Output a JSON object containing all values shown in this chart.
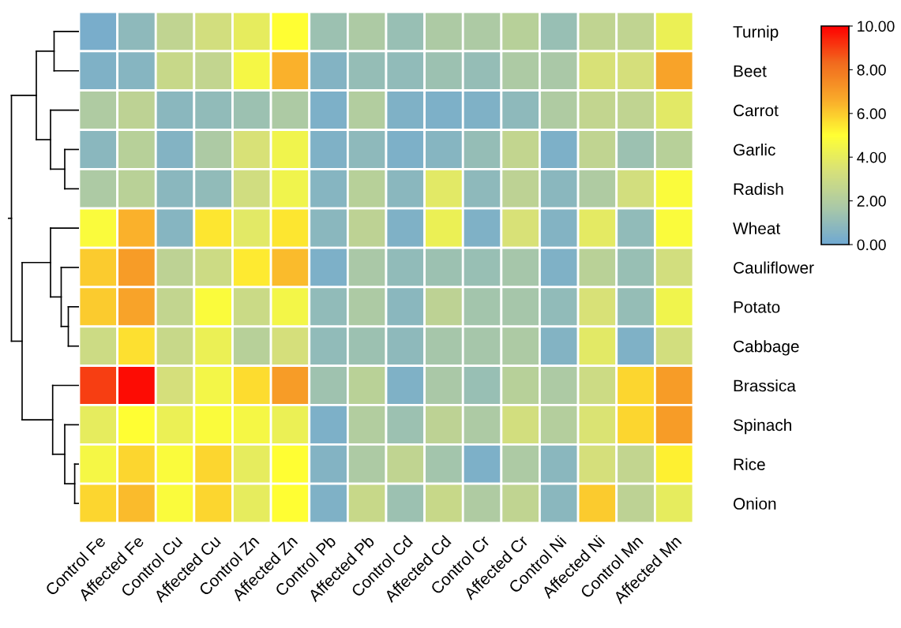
{
  "chart_data": {
    "type": "heatmap",
    "categories": [
      "Control Fe",
      "Affected Fe",
      "Control Cu",
      "Affected Cu",
      "Control Zn",
      "Affected Zn",
      "Control Pb",
      "Affected Pb",
      "Control Cd",
      "Affected Cd",
      "Control Cr",
      "Affected Cr",
      "Control Ni",
      "Affected Ni",
      "Control Mn",
      "Affected Mn"
    ],
    "y_categories": [
      "Turnip",
      "Beet",
      "Carrot",
      "Garlic",
      "Radish",
      "Wheat",
      "Cauliflower",
      "Potato",
      "Cabbage",
      "Brassica",
      "Spinach",
      "Rice",
      "Onion"
    ],
    "cells": [
      [
        0.3,
        0.9,
        2.5,
        3.2,
        4.0,
        5.0,
        1.3,
        1.8,
        1.2,
        1.8,
        1.8,
        2.2,
        1.2,
        2.5,
        2.5,
        4.2
      ],
      [
        0.5,
        0.7,
        2.8,
        2.6,
        4.6,
        6.5,
        0.6,
        1.1,
        1.0,
        1.3,
        1.1,
        1.8,
        1.7,
        3.4,
        3.3,
        6.8
      ],
      [
        1.9,
        2.4,
        0.8,
        1.0,
        1.3,
        1.8,
        0.4,
        2.0,
        0.5,
        0.4,
        0.5,
        0.9,
        1.9,
        2.6,
        2.5,
        3.8
      ],
      [
        0.8,
        2.2,
        0.6,
        1.8,
        3.4,
        4.4,
        0.5,
        0.9,
        0.4,
        0.7,
        1.1,
        2.6,
        0.4,
        2.5,
        1.3,
        2.2
      ],
      [
        1.8,
        2.3,
        0.8,
        1.0,
        3.1,
        4.4,
        0.7,
        2.2,
        0.8,
        3.8,
        0.9,
        2.4,
        0.8,
        1.9,
        3.2,
        4.8
      ],
      [
        4.8,
        6.5,
        0.7,
        5.5,
        3.8,
        5.5,
        0.8,
        2.4,
        0.5,
        4.2,
        0.5,
        3.4,
        0.6,
        3.9,
        1.0,
        4.8
      ],
      [
        6.0,
        7.0,
        2.4,
        3.0,
        5.4,
        6.3,
        0.4,
        1.7,
        1.0,
        1.3,
        1.2,
        1.6,
        0.5,
        2.3,
        1.2,
        3.2
      ],
      [
        6.0,
        6.8,
        2.6,
        4.8,
        2.9,
        4.5,
        1.0,
        1.8,
        0.8,
        2.4,
        1.5,
        1.6,
        1.0,
        3.4,
        1.1,
        4.4
      ],
      [
        3.0,
        5.6,
        2.8,
        4.2,
        2.2,
        3.3,
        1.0,
        1.3,
        0.9,
        1.6,
        1.6,
        1.8,
        0.6,
        3.8,
        0.5,
        3.2
      ],
      [
        9.0,
        9.8,
        3.3,
        4.5,
        5.7,
        7.0,
        1.4,
        2.3,
        0.5,
        1.7,
        1.2,
        2.2,
        1.8,
        3.0,
        5.8,
        7.0
      ],
      [
        4.0,
        5.0,
        4.2,
        4.8,
        4.6,
        4.2,
        0.4,
        2.0,
        1.3,
        2.4,
        1.8,
        3.2,
        2.1,
        3.5,
        5.8,
        7.0
      ],
      [
        4.6,
        5.8,
        4.8,
        5.8,
        4.0,
        5.0,
        0.6,
        1.8,
        2.5,
        1.5,
        0.4,
        1.8,
        0.8,
        3.3,
        2.6,
        5.3
      ],
      [
        5.8,
        6.3,
        4.8,
        5.8,
        4.0,
        5.0,
        0.5,
        2.8,
        1.3,
        2.8,
        1.9,
        2.5,
        0.8,
        6.0,
        2.4,
        4.0
      ]
    ],
    "clim": [
      0,
      10
    ],
    "cticks": [
      {
        "value": 0,
        "label": "0.00"
      },
      {
        "value": 2,
        "label": "2.00"
      },
      {
        "value": 4,
        "label": "4.00"
      },
      {
        "value": 6,
        "label": "6.00"
      },
      {
        "value": 8,
        "label": "8.00"
      },
      {
        "value": 10,
        "label": "10.00"
      }
    ]
  }
}
